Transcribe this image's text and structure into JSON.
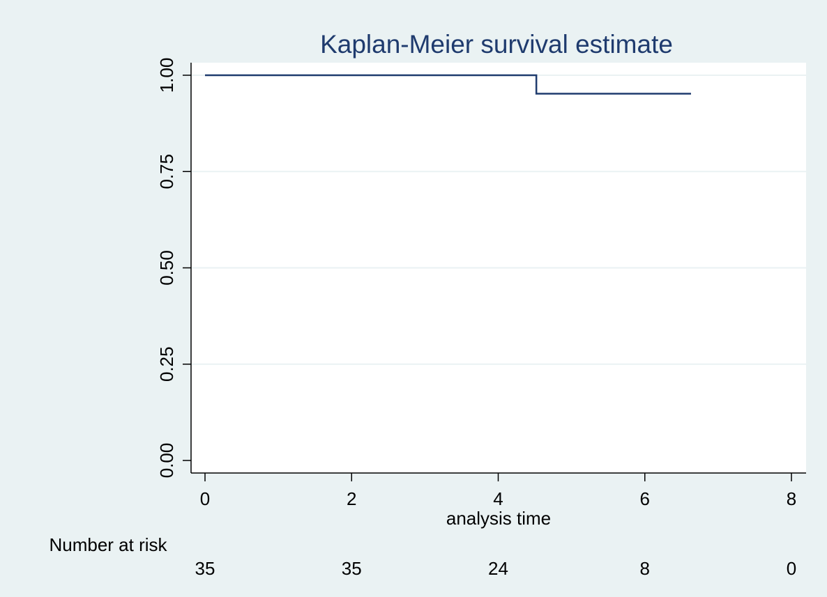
{
  "chart_data": {
    "type": "line",
    "title": "Kaplan-Meier survival estimate",
    "xlabel": "analysis time",
    "ylabel": "",
    "xlim": [
      0,
      8
    ],
    "ylim": [
      0,
      1
    ],
    "x_ticks": [
      0,
      2,
      4,
      6,
      8
    ],
    "y_ticks": [
      0.0,
      0.25,
      0.5,
      0.75,
      1.0
    ],
    "x_tick_labels": [
      "0",
      "2",
      "4",
      "6",
      "8"
    ],
    "y_tick_labels": [
      "0.00",
      "0.25",
      "0.50",
      "0.75",
      "1.00"
    ],
    "grid": "horizontal",
    "series": [
      {
        "step": "post",
        "color": "#1f3b6e",
        "x": [
          0,
          4.52,
          6.63
        ],
        "y": [
          1.0,
          0.952,
          0.952
        ]
      }
    ],
    "risk_table": {
      "label": "Number at risk",
      "times": [
        0,
        2,
        4,
        6,
        8
      ],
      "counts": [
        "35",
        "35",
        "24",
        "8",
        "0"
      ]
    }
  },
  "colors": {
    "background": "#eaf2f3",
    "plot_background": "#ffffff",
    "line": "#1f3b6e",
    "title": "#1f3b6e",
    "grid": "#eaf2f3"
  }
}
